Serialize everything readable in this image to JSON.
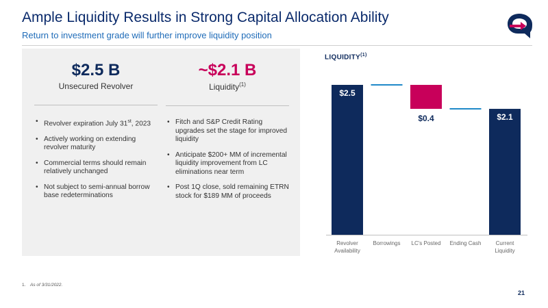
{
  "header": {
    "title": "Ample Liquidity Results in Strong Capital Allocation Ability",
    "subtitle": "Return to investment grade will further improve liquidity position"
  },
  "left_panel": {
    "col1": {
      "value": "$2.5 B",
      "label": "Unsecured Revolver",
      "bullets": [
        {
          "pre": "Revolver expiration July 31",
          "sup": "st",
          "post": ", 2023"
        },
        {
          "pre": "Actively working on extending revolver maturity",
          "sup": "",
          "post": ""
        },
        {
          "pre": "Commercial terms should remain relatively unchanged",
          "sup": "",
          "post": ""
        },
        {
          "pre": "Not subject to semi-annual borrow base redeterminations",
          "sup": "",
          "post": ""
        }
      ]
    },
    "col2": {
      "value": "~$2.1 B",
      "label": "Liquidity",
      "label_sup": "(1)",
      "bullets": [
        "Fitch and S&P Credit Rating upgrades set the stage for improved liquidity",
        "Anticipate $200+ MM of incremental liquidity improvement from LC eliminations near term",
        "Post 1Q close, sold remaining ETRN stock for $189 MM of proceeds"
      ]
    }
  },
  "chart_data": {
    "type": "bar",
    "title": "LIQUIDITY",
    "title_sup": "(1)",
    "categories": [
      "Revolver Availability",
      "Borrowings",
      "LC's Posted",
      "Ending Cash",
      "Current Liquidity"
    ],
    "values": [
      2.5,
      0.0,
      -0.4,
      0.0,
      2.1
    ],
    "data_labels": [
      "$2.5",
      "",
      "$0.4",
      "",
      "$2.1"
    ],
    "colors": {
      "total": "#0e2a5c",
      "decrease": "#c8005a",
      "connector": "#1e88c8"
    },
    "ylim": [
      0,
      2.5
    ]
  },
  "footer": {
    "footnote_num": "1.",
    "footnote_text": "As of 3/31/2022.",
    "page_number": "21"
  }
}
